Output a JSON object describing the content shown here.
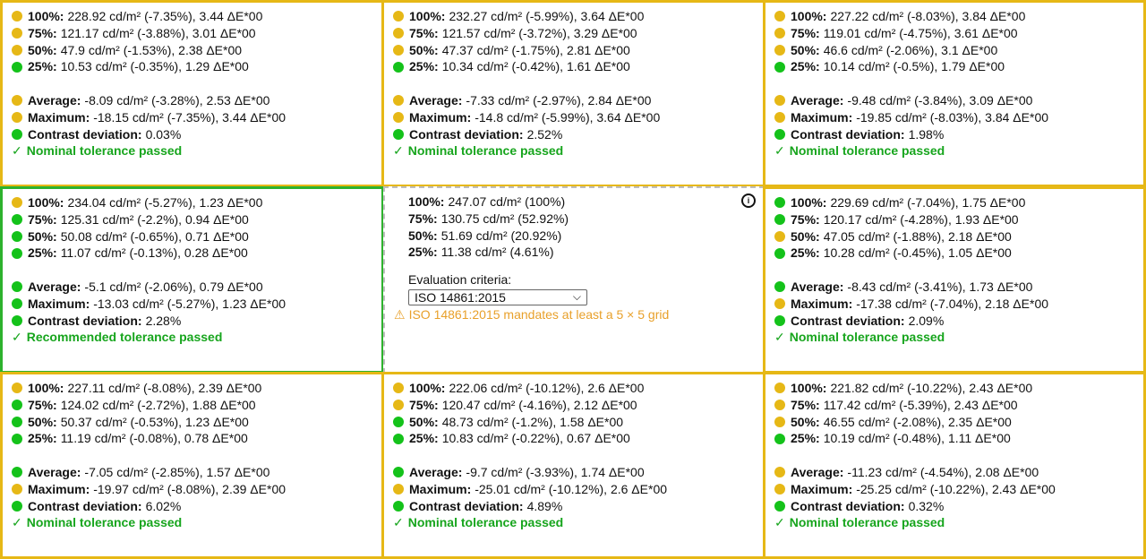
{
  "colors": {
    "warning": "#e6b816",
    "pass": "#14c21a",
    "recommended_border": "#2db22d",
    "tolerance_text": "#17a51d",
    "warning_text": "#e8a02a"
  },
  "labels": {
    "average": "Average:",
    "maximum": "Maximum:",
    "contrast": "Contrast deviation:"
  },
  "cells": [
    {
      "id": "top-left",
      "rows": [
        {
          "label": "100%:",
          "value": "228.92 cd/m² (-7.35%), 3.44 ΔE*00",
          "status": "yellow"
        },
        {
          "label": "75%:",
          "value": "121.17 cd/m² (-3.88%), 3.01 ΔE*00",
          "status": "yellow"
        },
        {
          "label": "50%:",
          "value": "47.9 cd/m² (-1.53%), 2.38 ΔE*00",
          "status": "yellow"
        },
        {
          "label": "25%:",
          "value": "10.53 cd/m² (-0.35%), 1.29 ΔE*00",
          "status": "green"
        }
      ],
      "average": {
        "value": "-8.09 cd/m² (-3.28%), 2.53 ΔE*00",
        "status": "yellow"
      },
      "maximum": {
        "value": "-18.15 cd/m² (-7.35%), 3.44 ΔE*00",
        "status": "yellow"
      },
      "contrast": {
        "value": "0.03%",
        "status": "green"
      },
      "tolerance": "Nominal tolerance passed"
    },
    {
      "id": "top-center",
      "rows": [
        {
          "label": "100%:",
          "value": "232.27 cd/m² (-5.99%), 3.64 ΔE*00",
          "status": "yellow"
        },
        {
          "label": "75%:",
          "value": "121.57 cd/m² (-3.72%), 3.29 ΔE*00",
          "status": "yellow"
        },
        {
          "label": "50%:",
          "value": "47.37 cd/m² (-1.75%), 2.81 ΔE*00",
          "status": "yellow"
        },
        {
          "label": "25%:",
          "value": "10.34 cd/m² (-0.42%), 1.61 ΔE*00",
          "status": "green"
        }
      ],
      "average": {
        "value": "-7.33 cd/m² (-2.97%), 2.84 ΔE*00",
        "status": "yellow"
      },
      "maximum": {
        "value": "-14.8 cd/m² (-5.99%), 3.64 ΔE*00",
        "status": "yellow"
      },
      "contrast": {
        "value": "2.52%",
        "status": "green"
      },
      "tolerance": "Nominal tolerance passed"
    },
    {
      "id": "top-right",
      "rows": [
        {
          "label": "100%:",
          "value": "227.22 cd/m² (-8.03%), 3.84 ΔE*00",
          "status": "yellow"
        },
        {
          "label": "75%:",
          "value": "119.01 cd/m² (-4.75%), 3.61 ΔE*00",
          "status": "yellow"
        },
        {
          "label": "50%:",
          "value": "46.6 cd/m² (-2.06%), 3.1 ΔE*00",
          "status": "yellow"
        },
        {
          "label": "25%:",
          "value": "10.14 cd/m² (-0.5%), 1.79 ΔE*00",
          "status": "green"
        }
      ],
      "average": {
        "value": "-9.48 cd/m² (-3.84%), 3.09 ΔE*00",
        "status": "yellow"
      },
      "maximum": {
        "value": "-19.85 cd/m² (-8.03%), 3.84 ΔE*00",
        "status": "yellow"
      },
      "contrast": {
        "value": "1.98%",
        "status": "green"
      },
      "tolerance": "Nominal tolerance passed"
    },
    {
      "id": "middle-left",
      "rows": [
        {
          "label": "100%:",
          "value": "234.04 cd/m² (-5.27%), 1.23 ΔE*00",
          "status": "yellow"
        },
        {
          "label": "75%:",
          "value": "125.31 cd/m² (-2.2%), 0.94 ΔE*00",
          "status": "green"
        },
        {
          "label": "50%:",
          "value": "50.08 cd/m² (-0.65%), 0.71 ΔE*00",
          "status": "green"
        },
        {
          "label": "25%:",
          "value": "11.07 cd/m² (-0.13%), 0.28 ΔE*00",
          "status": "green"
        }
      ],
      "average": {
        "value": "-5.1 cd/m² (-2.06%), 0.79 ΔE*00",
        "status": "green"
      },
      "maximum": {
        "value": "-13.03 cd/m² (-5.27%), 1.23 ΔE*00",
        "status": "green"
      },
      "contrast": {
        "value": "2.28%",
        "status": "green"
      },
      "tolerance": "Recommended tolerance passed"
    },
    {
      "id": "middle-right",
      "rows": [
        {
          "label": "100%:",
          "value": "229.69 cd/m² (-7.04%), 1.75 ΔE*00",
          "status": "green"
        },
        {
          "label": "75%:",
          "value": "120.17 cd/m² (-4.28%), 1.93 ΔE*00",
          "status": "green"
        },
        {
          "label": "50%:",
          "value": "47.05 cd/m² (-1.88%), 2.18 ΔE*00",
          "status": "yellow"
        },
        {
          "label": "25%:",
          "value": "10.28 cd/m² (-0.45%), 1.05 ΔE*00",
          "status": "green"
        }
      ],
      "average": {
        "value": "-8.43 cd/m² (-3.41%), 1.73 ΔE*00",
        "status": "green"
      },
      "maximum": {
        "value": "-17.38 cd/m² (-7.04%), 2.18 ΔE*00",
        "status": "yellow"
      },
      "contrast": {
        "value": "2.09%",
        "status": "green"
      },
      "tolerance": "Nominal tolerance passed"
    },
    {
      "id": "bottom-left",
      "rows": [
        {
          "label": "100%:",
          "value": "227.11 cd/m² (-8.08%), 2.39 ΔE*00",
          "status": "yellow"
        },
        {
          "label": "75%:",
          "value": "124.02 cd/m² (-2.72%), 1.88 ΔE*00",
          "status": "green"
        },
        {
          "label": "50%:",
          "value": "50.37 cd/m² (-0.53%), 1.23 ΔE*00",
          "status": "green"
        },
        {
          "label": "25%:",
          "value": "11.19 cd/m² (-0.08%), 0.78 ΔE*00",
          "status": "green"
        }
      ],
      "average": {
        "value": "-7.05 cd/m² (-2.85%), 1.57 ΔE*00",
        "status": "green"
      },
      "maximum": {
        "value": "-19.97 cd/m² (-8.08%), 2.39 ΔE*00",
        "status": "yellow"
      },
      "contrast": {
        "value": "6.02%",
        "status": "green"
      },
      "tolerance": "Nominal tolerance passed"
    },
    {
      "id": "bottom-center",
      "rows": [
        {
          "label": "100%:",
          "value": "222.06 cd/m² (-10.12%), 2.6 ΔE*00",
          "status": "yellow"
        },
        {
          "label": "75%:",
          "value": "120.47 cd/m² (-4.16%), 2.12 ΔE*00",
          "status": "yellow"
        },
        {
          "label": "50%:",
          "value": "48.73 cd/m² (-1.2%), 1.58 ΔE*00",
          "status": "green"
        },
        {
          "label": "25%:",
          "value": "10.83 cd/m² (-0.22%), 0.67 ΔE*00",
          "status": "green"
        }
      ],
      "average": {
        "value": "-9.7 cd/m² (-3.93%), 1.74 ΔE*00",
        "status": "green"
      },
      "maximum": {
        "value": "-25.01 cd/m² (-10.12%), 2.6 ΔE*00",
        "status": "yellow"
      },
      "contrast": {
        "value": "4.89%",
        "status": "green"
      },
      "tolerance": "Nominal tolerance passed"
    },
    {
      "id": "bottom-right",
      "rows": [
        {
          "label": "100%:",
          "value": "221.82 cd/m² (-10.22%), 2.43 ΔE*00",
          "status": "yellow"
        },
        {
          "label": "75%:",
          "value": "117.42 cd/m² (-5.39%), 2.43 ΔE*00",
          "status": "yellow"
        },
        {
          "label": "50%:",
          "value": "46.55 cd/m² (-2.08%), 2.35 ΔE*00",
          "status": "yellow"
        },
        {
          "label": "25%:",
          "value": "10.19 cd/m² (-0.48%), 1.11 ΔE*00",
          "status": "green"
        }
      ],
      "average": {
        "value": "-11.23 cd/m² (-4.54%), 2.08 ΔE*00",
        "status": "yellow"
      },
      "maximum": {
        "value": "-25.25 cd/m² (-10.22%), 2.43 ΔE*00",
        "status": "yellow"
      },
      "contrast": {
        "value": "0.32%",
        "status": "green"
      },
      "tolerance": "Nominal tolerance passed"
    }
  ],
  "reference": {
    "rows": [
      {
        "label": "100%:",
        "value": "247.07 cd/m² (100%)"
      },
      {
        "label": "75%:",
        "value": "130.75 cd/m² (52.92%)"
      },
      {
        "label": "50%:",
        "value": "51.69 cd/m² (20.92%)"
      },
      {
        "label": "25%:",
        "value": "11.38 cd/m² (4.61%)"
      }
    ],
    "criteria_label": "Evaluation criteria:",
    "criteria_selected": "ISO 14861:2015",
    "warning": "ISO 14861:2015 mandates at least a 5 × 5 grid",
    "warning_icon": "warning-triangle-icon",
    "info_icon": "info-icon"
  }
}
